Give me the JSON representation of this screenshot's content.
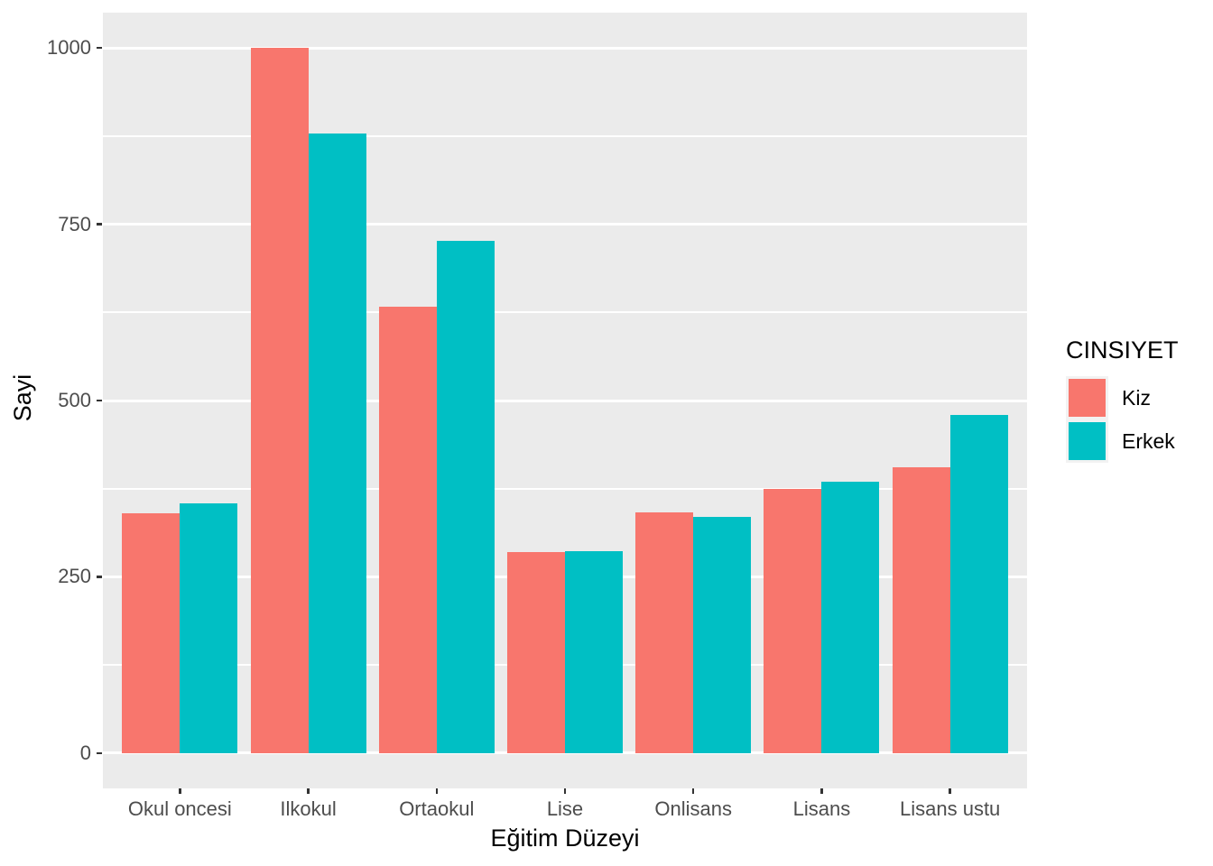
{
  "chart_data": {
    "type": "bar",
    "title": "",
    "categories": [
      "Okul oncesi",
      "Ilkokul",
      "Ortaokul",
      "Lise",
      "Onlisans",
      "Lisans",
      "Lisans ustu"
    ],
    "series": [
      {
        "name": "Kiz",
        "color": "#F8766D",
        "values": [
          340,
          1000,
          633,
          285,
          341,
          375,
          405
        ]
      },
      {
        "name": "Erkek",
        "color": "#00BFC4",
        "values": [
          354,
          878,
          727,
          287,
          335,
          385,
          480
        ]
      }
    ],
    "xlabel": "Eğitim Düzeyi",
    "ylabel": "Sayi",
    "ylim": [
      0,
      1000
    ],
    "yticks": [
      0,
      250,
      500,
      750,
      1000
    ],
    "yticks_minor": [
      125,
      375,
      625,
      875
    ],
    "grid": true,
    "bar_layout": "dodged",
    "legend": {
      "title": "CINSIYET",
      "position": "right"
    },
    "colors": {
      "panel_bg": "#EBEBEB",
      "grid": "#FFFFFF",
      "tick_label": "#4D4D4D",
      "axis_title": "#000000",
      "tick_mark": "#333333",
      "legend_key_bg": "#F2F2F2"
    }
  }
}
